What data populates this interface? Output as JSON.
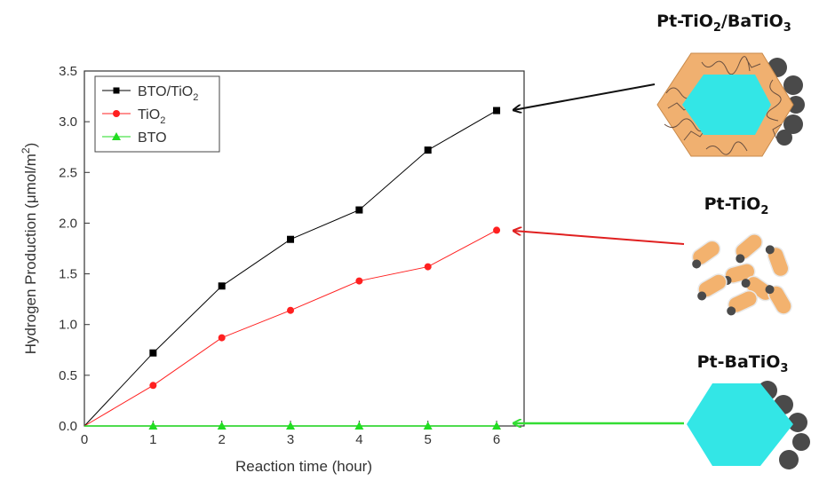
{
  "chart_data": {
    "type": "line",
    "xlabel": "Reaction time (hour)",
    "ylabel": "Hydrogen Production (μmol/m",
    "ylabel_sup": "2",
    "ylabel_end": ")",
    "xlim": [
      0,
      6.4
    ],
    "ylim": [
      0,
      3.5
    ],
    "x_ticks": [
      "0",
      "1",
      "2",
      "3",
      "4",
      "5",
      "6"
    ],
    "y_ticks": [
      "0.0",
      "0.5",
      "1.0",
      "1.5",
      "2.0",
      "2.5",
      "3.0",
      "3.5"
    ],
    "grid": false,
    "legend_position": "top-left",
    "x": [
      0,
      1,
      2,
      3,
      4,
      5,
      6
    ],
    "series": [
      {
        "name": "BTO/TiO",
        "name_sub": "2",
        "marker": "square",
        "color": "#000000",
        "values": [
          0.0,
          0.72,
          1.38,
          1.84,
          2.13,
          2.72,
          3.11
        ]
      },
      {
        "name": "TiO",
        "name_sub": "2",
        "marker": "circle",
        "color": "#ff2020",
        "values": [
          0.0,
          0.4,
          0.87,
          1.14,
          1.43,
          1.57,
          1.93
        ]
      },
      {
        "name": "BTO",
        "name_sub": "",
        "marker": "triangle",
        "color": "#22dd22",
        "values": [
          0.0,
          0.0,
          0.0,
          0.0,
          0.0,
          0.0,
          0.0
        ]
      }
    ]
  },
  "diagram": {
    "labels": [
      {
        "text": "Pt-TiO",
        "sub": "2",
        "rest": "/BaTiO",
        "sub2": "3"
      },
      {
        "text": "Pt-TiO",
        "sub": "2",
        "rest": "",
        "sub2": ""
      },
      {
        "text": "Pt-BaTiO",
        "sub": "3",
        "rest": "",
        "sub2": ""
      }
    ],
    "colors": {
      "hexagon": "#33e6e6",
      "shell": "#f0b070",
      "particle": "#f3b26e",
      "pt": "#4a4a4a"
    }
  }
}
